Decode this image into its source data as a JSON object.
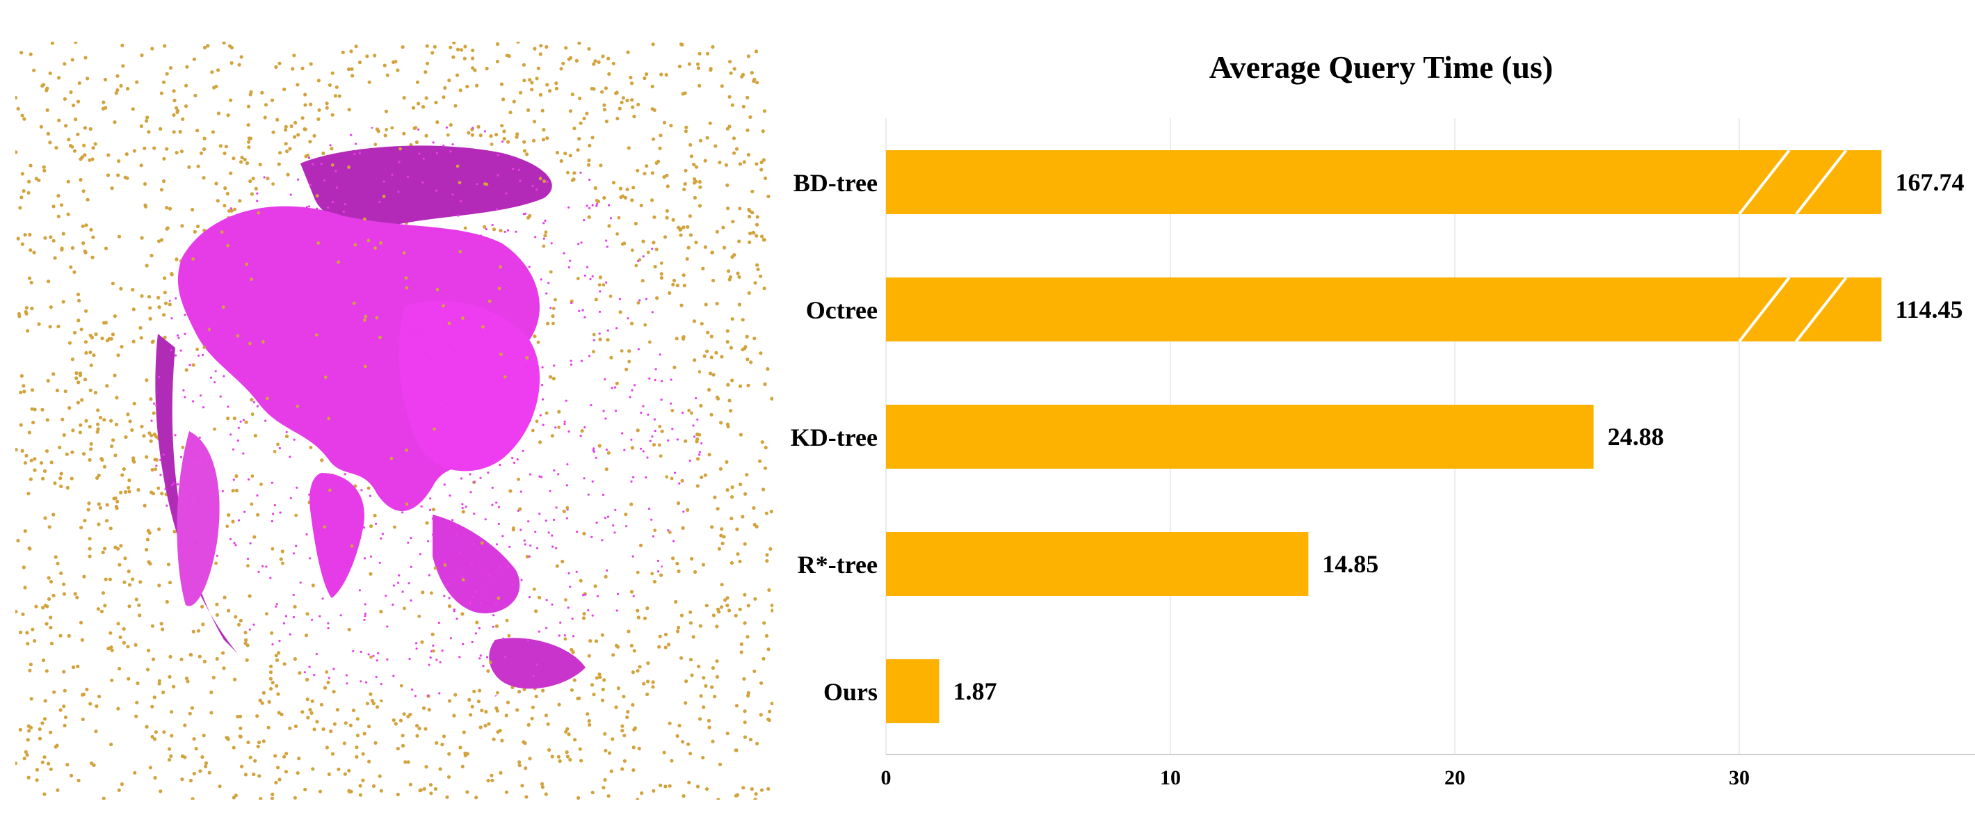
{
  "figure": {
    "point_cloud": {
      "land_color": "#e63ee6",
      "noise_color": "#d2a23c",
      "background": "#ffffff"
    }
  },
  "chart_data": {
    "type": "bar",
    "orientation": "horizontal",
    "title": "Average Query Time (us)",
    "categories": [
      "BD-tree",
      "Octree",
      "KD-tree",
      "R*-tree",
      "Ours"
    ],
    "values": [
      167.74,
      114.45,
      24.88,
      14.85,
      1.87
    ],
    "value_labels": [
      "167.74",
      "114.45",
      "24.88",
      "14.85",
      "1.87"
    ],
    "axis_break": {
      "after": 30,
      "applies_to": [
        "BD-tree",
        "Octree"
      ]
    },
    "xticks": [
      0,
      10,
      20,
      30
    ],
    "xlim": [
      0,
      38
    ],
    "grid": "vertical",
    "bar_color": "#fdb100",
    "xlabel": "",
    "ylabel": ""
  }
}
